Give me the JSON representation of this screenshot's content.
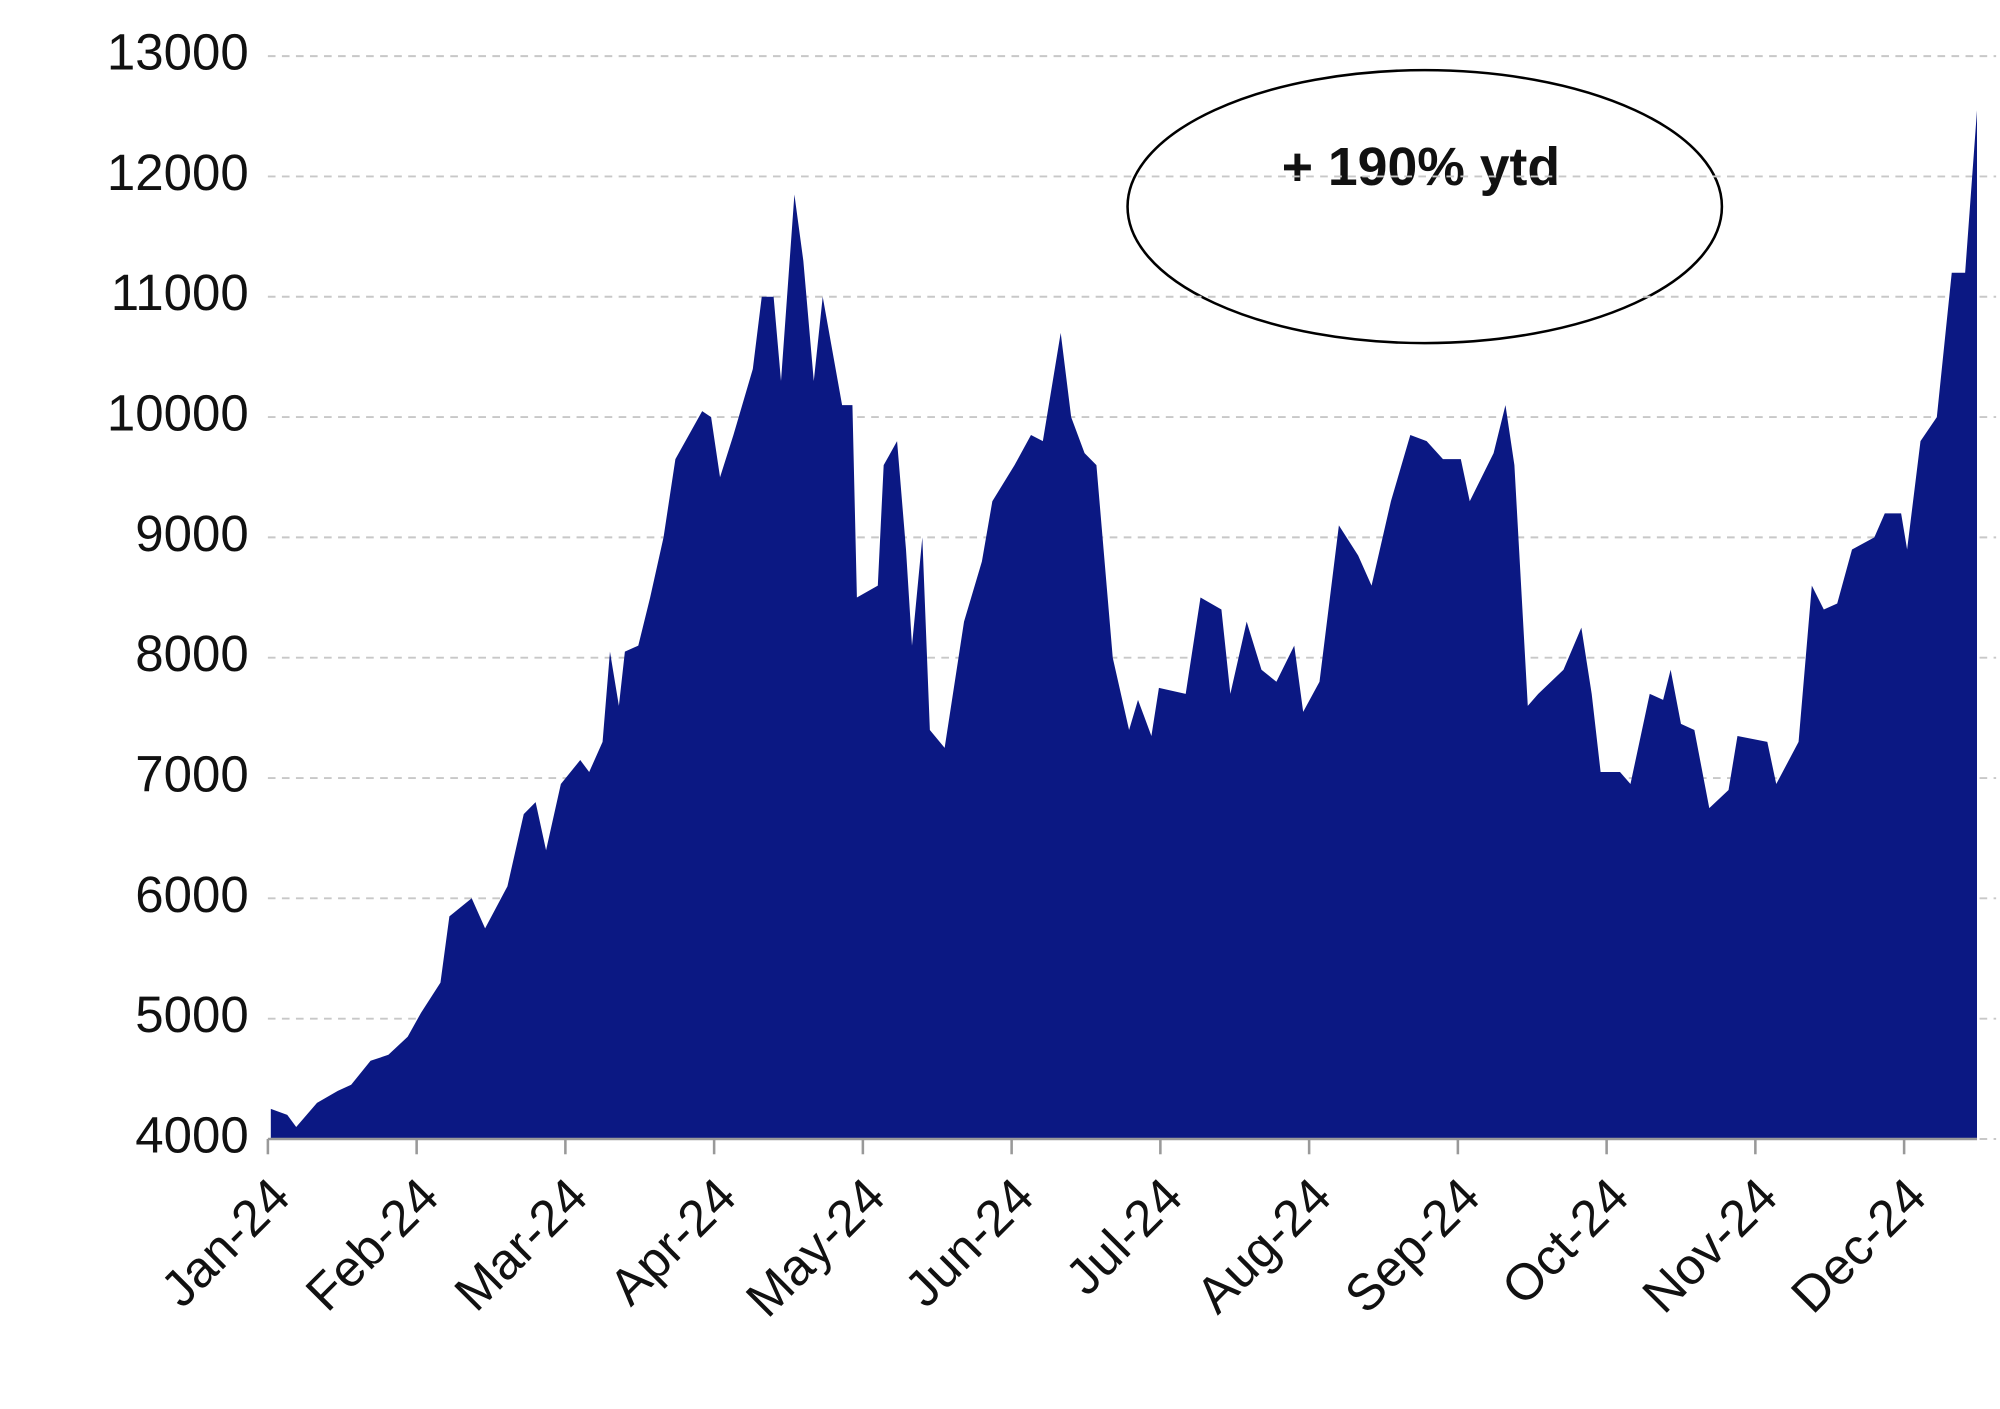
{
  "chart_data": {
    "type": "area",
    "annotation": "+ 190% ytd",
    "color": "#0b1883",
    "x": [
      0.02,
      0.13,
      0.19,
      0.33,
      0.47,
      0.56,
      0.69,
      0.81,
      0.94,
      1.03,
      1.16,
      1.22,
      1.37,
      1.46,
      1.61,
      1.72,
      1.8,
      1.87,
      1.97,
      2.1,
      2.16,
      2.25,
      2.3,
      2.36,
      2.4,
      2.49,
      2.57,
      2.66,
      2.74,
      2.92,
      2.98,
      3.04,
      3.13,
      3.26,
      3.32,
      3.4,
      3.45,
      3.54,
      3.6,
      3.67,
      3.73,
      3.86,
      3.93,
      3.96,
      4.1,
      4.14,
      4.23,
      4.29,
      4.33,
      4.4,
      4.45,
      4.55,
      4.68,
      4.8,
      4.87,
      5.02,
      5.13,
      5.21,
      5.33,
      5.4,
      5.49,
      5.57,
      5.68,
      5.79,
      5.85,
      5.94,
      5.99,
      6.17,
      6.27,
      6.41,
      6.47,
      6.58,
      6.68,
      6.78,
      6.9,
      6.96,
      7.07,
      7.2,
      7.33,
      7.42,
      7.55,
      7.68,
      7.79,
      7.9,
      8.02,
      8.08,
      8.24,
      8.32,
      8.38,
      8.47,
      8.54,
      8.71,
      8.83,
      8.9,
      8.96,
      9.09,
      9.16,
      9.29,
      9.38,
      9.43,
      9.5,
      9.59,
      9.69,
      9.82,
      9.88,
      10.08,
      10.14,
      10.29,
      10.38,
      10.46,
      10.55,
      10.65,
      10.8,
      10.87,
      10.98,
      11.02,
      11.11,
      11.22,
      11.32,
      11.41,
      11.49
    ],
    "values": [
      4250,
      4200,
      4100,
      4300,
      4400,
      4450,
      4650,
      4700,
      4850,
      5050,
      5300,
      5850,
      6000,
      5750,
      6100,
      6700,
      6800,
      6400,
      6950,
      7150,
      7050,
      7300,
      8050,
      7600,
      8050,
      8100,
      8500,
      9000,
      9650,
      10050,
      10000,
      9500,
      9850,
      10400,
      11000,
      11000,
      10300,
      11850,
      11300,
      10300,
      11000,
      10100,
      10100,
      8500,
      8600,
      9600,
      9800,
      8900,
      8100,
      9000,
      7400,
      7250,
      8300,
      8800,
      9300,
      9600,
      9850,
      9800,
      10700,
      10000,
      9700,
      9600,
      8000,
      7400,
      7650,
      7350,
      7750,
      7700,
      8500,
      8400,
      7700,
      8300,
      7900,
      7800,
      8100,
      7550,
      7800,
      9100,
      8850,
      8600,
      9300,
      9850,
      9800,
      9650,
      9650,
      9300,
      9700,
      10100,
      9600,
      7600,
      7700,
      7900,
      8250,
      7700,
      7050,
      7050,
      6950,
      7700,
      7650,
      7900,
      7450,
      7400,
      6750,
      6900,
      7350,
      7300,
      6950,
      7300,
      8600,
      8400,
      8450,
      8900,
      9000,
      9200,
      9200,
      8900,
      9800,
      10000,
      11200,
      11200,
      12550
    ],
    "xlim": [
      0,
      11.49
    ],
    "xticks": [
      {
        "value": 0,
        "label": "Jan-24"
      },
      {
        "value": 1,
        "label": "Feb-24"
      },
      {
        "value": 2,
        "label": "Mar-24"
      },
      {
        "value": 3,
        "label": "Apr-24"
      },
      {
        "value": 4,
        "label": "May-24"
      },
      {
        "value": 5,
        "label": "Jun-24"
      },
      {
        "value": 6,
        "label": "Jul-24"
      },
      {
        "value": 7,
        "label": "Aug-24"
      },
      {
        "value": 8,
        "label": "Sep-24"
      },
      {
        "value": 9,
        "label": "Oct-24"
      },
      {
        "value": 10,
        "label": "Nov-24"
      },
      {
        "value": 11,
        "label": "Dec-24"
      }
    ],
    "ylim": [
      4000,
      13000
    ],
    "yticks": [
      4000,
      5000,
      6000,
      7000,
      8000,
      9000,
      10000,
      11000,
      12000,
      13000
    ],
    "grid": true
  }
}
